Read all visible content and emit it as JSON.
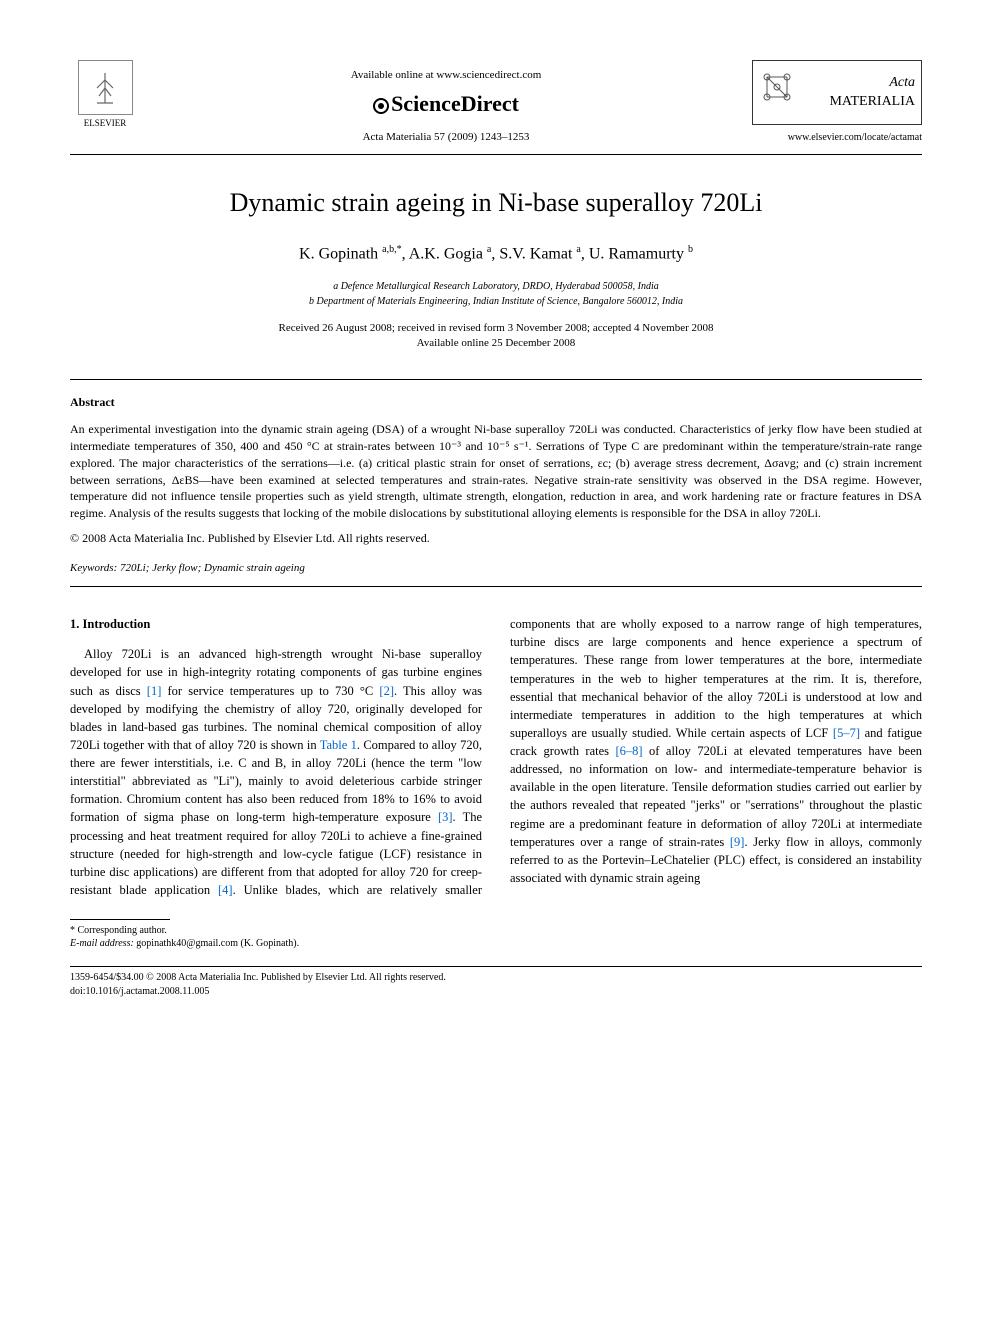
{
  "header": {
    "elsevier_label": "ELSEVIER",
    "available_online": "Available online at www.sciencedirect.com",
    "sciencedirect": "ScienceDirect",
    "journal_ref": "Acta Materialia 57 (2009) 1243–1253",
    "journal_name_italic": "Acta",
    "journal_name_caps": "MATERIALIA",
    "journal_url": "www.elsevier.com/locate/actamat"
  },
  "title": "Dynamic strain ageing in Ni-base superalloy 720Li",
  "authors_html": "K. Gopinath <sup>a,b,*</sup>, A.K. Gogia <sup>a</sup>, S.V. Kamat <sup>a</sup>, U. Ramamurty <sup>b</sup>",
  "affiliations": {
    "a": "a Defence Metallurgical Research Laboratory, DRDO, Hyderabad 500058, India",
    "b": "b Department of Materials Engineering, Indian Institute of Science, Bangalore 560012, India"
  },
  "dates": {
    "received": "Received 26 August 2008; received in revised form 3 November 2008; accepted 4 November 2008",
    "online": "Available online 25 December 2008"
  },
  "abstract": {
    "heading": "Abstract",
    "text": "An experimental investigation into the dynamic strain ageing (DSA) of a wrought Ni-base superalloy 720Li was conducted. Characteristics of jerky flow have been studied at intermediate temperatures of 350, 400 and 450 °C at strain-rates between 10⁻³ and 10⁻⁵ s⁻¹. Serrations of Type C are predominant within the temperature/strain-rate range explored. The major characteristics of the serrations—i.e. (a) critical plastic strain for onset of serrations, εc; (b) average stress decrement, Δσavg; and (c) strain increment between serrations, ΔεBS—have been examined at selected temperatures and strain-rates. Negative strain-rate sensitivity was observed in the DSA regime. However, temperature did not influence tensile properties such as yield strength, ultimate strength, elongation, reduction in area, and work hardening rate or fracture features in DSA regime. Analysis of the results suggests that locking of the mobile dislocations by substitutional alloying elements is responsible for the DSA in alloy 720Li.",
    "copyright": "© 2008 Acta Materialia Inc. Published by Elsevier Ltd. All rights reserved."
  },
  "keywords": {
    "label": "Keywords:",
    "text": "720Li; Jerky flow; Dynamic strain ageing"
  },
  "body": {
    "section_heading": "1. Introduction",
    "col1_text": "Alloy 720Li is an advanced high-strength wrought Ni-base superalloy developed for use in high-integrity rotating components of gas turbine engines such as discs [1] for service temperatures up to 730 °C [2]. This alloy was developed by modifying the chemistry of alloy 720, originally developed for blades in land-based gas turbines. The nominal chemical composition of alloy 720Li together with that of alloy 720 is shown in Table 1. Compared to alloy 720, there are fewer interstitials, i.e. C and B, in alloy 720Li (hence the term \"low interstitial\" abbreviated as \"Li\"), mainly to avoid deleterious carbide stringer formation. Chromium content has also been reduced from 18% to 16% to avoid formation of sigma phase on long-term high-temperature exposure [3]. The processing and heat treatment required for alloy 720Li to achieve a fine-grained structure (needed for high-strength and low-cycle fatigue (LCF) resistance in turbine disc applications) are different",
    "col2_text": "from that adopted for alloy 720 for creep-resistant blade application [4]. Unlike blades, which are relatively smaller components that are wholly exposed to a narrow range of high temperatures, turbine discs are large components and hence experience a spectrum of temperatures. These range from lower temperatures at the bore, intermediate temperatures in the web to higher temperatures at the rim. It is, therefore, essential that mechanical behavior of the alloy 720Li is understood at low and intermediate temperatures in addition to the high temperatures at which superalloys are usually studied. While certain aspects of LCF [5–7] and fatigue crack growth rates [6–8] of alloy 720Li at elevated temperatures have been addressed, no information on low- and intermediate-temperature behavior is available in the open literature. Tensile deformation studies carried out earlier by the authors revealed that repeated \"jerks\" or \"serrations\" throughout the plastic regime are a predominant feature in deformation of alloy 720Li at intermediate temperatures over a range of strain-rates [9]. Jerky flow in alloys, commonly referred to as the Portevin–LeChatelier (PLC) effect, is considered an instability associated with dynamic strain ageing"
  },
  "footnote": {
    "corresponding": "* Corresponding author.",
    "email_label": "E-mail address:",
    "email": "gopinathk40@gmail.com",
    "email_name": "(K. Gopinath)."
  },
  "footer": {
    "issn_copyright": "1359-6454/$34.00 © 2008 Acta Materialia Inc. Published by Elsevier Ltd. All rights reserved.",
    "doi": "doi:10.1016/j.actamat.2008.11.005"
  },
  "refs": {
    "r1": "[1]",
    "r2": "[2]",
    "r3": "[3]",
    "r4": "[4]",
    "r57": "[5–7]",
    "r68": "[6–8]",
    "r9": "[9]",
    "table1": "Table 1"
  },
  "colors": {
    "link": "#0066cc",
    "text": "#000000",
    "background": "#ffffff",
    "border": "#333333"
  },
  "typography": {
    "base_font": "Georgia, Times New Roman, serif",
    "title_fontsize": 26,
    "authors_fontsize": 16,
    "body_fontsize": 12.5,
    "abstract_fontsize": 12,
    "footnote_fontsize": 10
  }
}
